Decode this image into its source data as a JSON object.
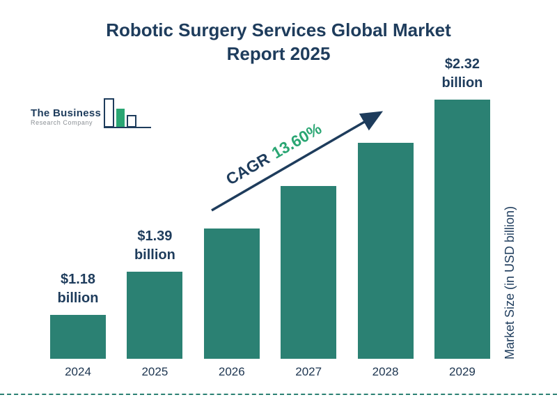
{
  "title": {
    "line1": "Robotic Surgery Services Global Market",
    "line2": "Report 2025"
  },
  "logo": {
    "name_top": "The Business",
    "name_bottom": "Research Company"
  },
  "cagr": {
    "label": "CAGR",
    "value": "13.60%"
  },
  "y_axis_label": "Market Size (in USD billion)",
  "chart_data": {
    "type": "bar",
    "title": "Robotic Surgery Services Global Market Report 2025",
    "categories": [
      "2024",
      "2025",
      "2026",
      "2027",
      "2028",
      "2029"
    ],
    "values": [
      1.18,
      1.39,
      1.58,
      1.79,
      2.04,
      2.32
    ],
    "bar_labels": [
      {
        "amount": "$1.18",
        "unit": "billion"
      },
      {
        "amount": "$1.39",
        "unit": "billion"
      },
      null,
      null,
      null,
      {
        "amount": "$2.32",
        "unit": "billion"
      }
    ],
    "cagr_percent": 13.6,
    "xlabel": "",
    "ylabel": "Market Size (in USD billion)",
    "legend": "none",
    "grid": false,
    "colors": {
      "bar": "#2b8173",
      "navy": "#1e3c5c",
      "cagr_green": "#2aa673",
      "dashed_line": "#2b8173",
      "logo_green": "#2aa673"
    }
  }
}
